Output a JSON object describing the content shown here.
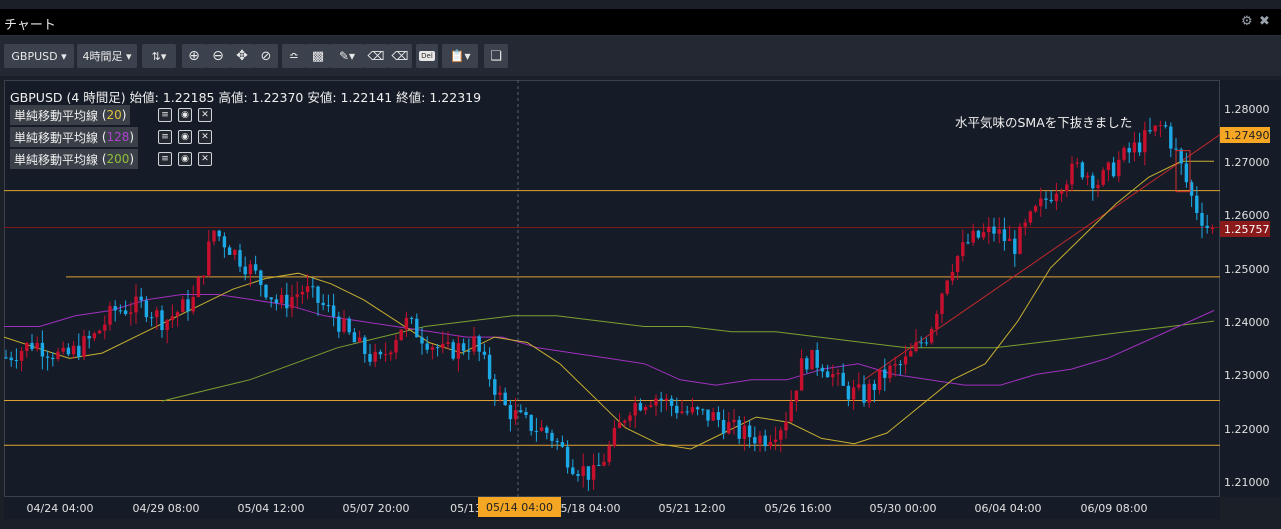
{
  "window": {
    "title": "チャート",
    "settings_icon": "gear-icon",
    "close_icon": "close-icon"
  },
  "toolbar": {
    "symbol": "GBPUSD",
    "timeframe": "4時間足",
    "buttons": [
      "chart-type-icon",
      "zoom-in-icon",
      "zoom-out-icon",
      "move-icon",
      "crosshair-icon",
      "trend-icon",
      "save-icon",
      "pen-icon",
      "eraser-icon",
      "eraser-all-icon",
      "delete-icon",
      "clipboard-icon",
      "window-icon"
    ],
    "delete_label": "Del"
  },
  "chart": {
    "header": "GBPUSD (4 時間足) 始値: 1.22185 高値: 1.22370 安値: 1.22141 終値: 1.22319",
    "annotation": "水平気味のSMAを下抜きました",
    "indicators": [
      {
        "label": "単純移動平均線",
        "period": "20",
        "color": "#e0c040"
      },
      {
        "label": "単純移動平均線",
        "period": "128",
        "color": "#b040d0"
      },
      {
        "label": "単純移動平均線",
        "period": "200",
        "color": "#8fbf3a"
      }
    ],
    "y_ticks": [
      "1.28000",
      "1.27000",
      "1.26000",
      "1.25000",
      "1.24000",
      "1.23000",
      "1.22000",
      "1.21000"
    ],
    "price_badge_current": "1.25757",
    "price_badge_line": "1.27490",
    "x_ticks": [
      "04/24 04:00",
      "04/29 08:00",
      "05/04 12:00",
      "05/07 20:00",
      "05/13",
      "05/18 04:00",
      "05/21 12:00",
      "05/26 16:00",
      "05/30 00:00",
      "06/04 04:00",
      "06/09 08:00"
    ],
    "x_highlight": "05/14 04:00",
    "colors": {
      "up": "#c8102e",
      "down": "#1ca9e6",
      "hline": "#e0a030",
      "trend": "#c0282d",
      "sma20": "#c8b030",
      "sma128": "#a030c0",
      "sma200": "#7ca030"
    }
  },
  "chart_data": {
    "type": "candlestick",
    "symbol": "GBPUSD",
    "ylim": [
      1.205,
      1.285
    ],
    "horizontal_levels": [
      1.2645,
      1.2483,
      1.2251,
      1.2167
    ],
    "trend_line": [
      [
        1.229,
        1.275
      ]
    ],
    "sma20_path": [
      1.237,
      1.235,
      1.233,
      1.234,
      1.237,
      1.24,
      1.243,
      1.246,
      1.248,
      1.249,
      1.247,
      1.244,
      1.24,
      1.236,
      1.234,
      1.237,
      1.236,
      1.232,
      1.226,
      1.22,
      1.217,
      1.216,
      1.219,
      1.222,
      1.221,
      1.218,
      1.217,
      1.219,
      1.224,
      1.229,
      1.232,
      1.24,
      1.25,
      1.256,
      1.262,
      1.267,
      1.27,
      1.27
    ],
    "sma128_path": [
      1.239,
      1.239,
      1.241,
      1.242,
      1.244,
      1.245,
      1.245,
      1.244,
      1.243,
      1.241,
      1.24,
      1.239,
      1.238,
      1.237,
      1.237,
      1.235,
      1.234,
      1.233,
      1.232,
      1.229,
      1.228,
      1.229,
      1.229,
      1.231,
      1.232,
      1.23,
      1.229,
      1.228,
      1.228,
      1.23,
      1.231,
      1.233,
      1.236,
      1.239,
      1.242
    ],
    "sma200_path": [
      1.225,
      1.227,
      1.229,
      1.232,
      1.235,
      1.237,
      1.239,
      1.24,
      1.241,
      1.241,
      1.24,
      1.239,
      1.239,
      1.238,
      1.238,
      1.237,
      1.236,
      1.235,
      1.235,
      1.235,
      1.236,
      1.237,
      1.238,
      1.239,
      1.24
    ]
  }
}
